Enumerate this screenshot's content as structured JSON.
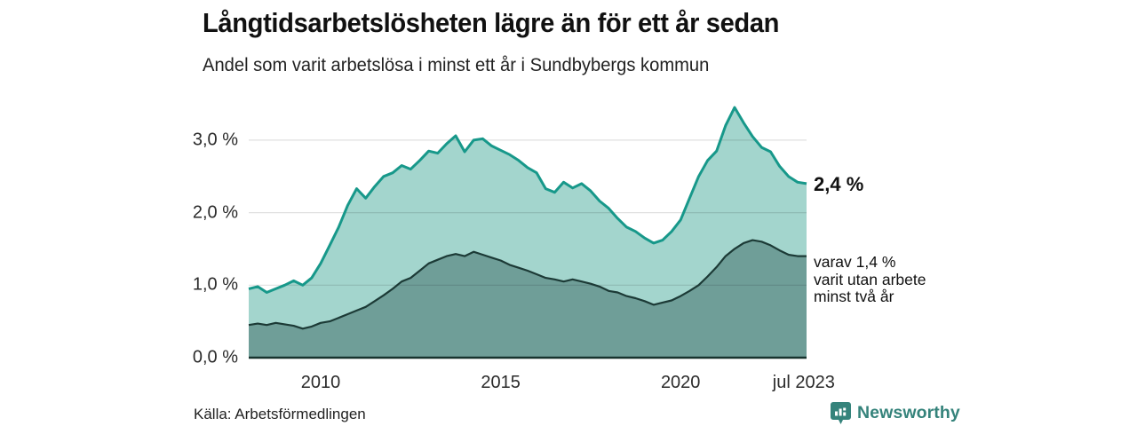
{
  "header": {
    "title": "Långtidsarbetslösheten lägre än för ett år sedan",
    "subtitle": "Andel som varit arbetslösa i minst ett år i Sundbybergs kommun"
  },
  "annotations": {
    "primary_value": "2,4 %",
    "secondary_lines": [
      "varav 1,4 %",
      "varit utan arbete",
      "minst två år"
    ]
  },
  "footer": {
    "source": "Källa: Arbetsförmedlingen",
    "brand": "Newsworthy",
    "brand_icon": "newsworthy-pin-barchart-icon",
    "brand_color": "#35837b"
  },
  "chart_data": {
    "type": "area",
    "title": "Långtidsarbetslösheten lägre än för ett år sedan",
    "subtitle": "Andel som varit arbetslösa i minst ett år i Sundbybergs kommun",
    "x_unit": "decimal year (quarterly readings of monthly series, jan 2008 – jul 2023)",
    "ylabel": "",
    "xlabel": "",
    "ylim": [
      0,
      3.5
    ],
    "grid": "horizontal",
    "legend": "none – direct labels at line ends",
    "gridline_color": "#d9d9d9",
    "baseline_color": "#17332e",
    "x": [
      2008.0,
      2008.25,
      2008.5,
      2008.75,
      2009.0,
      2009.25,
      2009.5,
      2009.75,
      2010.0,
      2010.25,
      2010.5,
      2010.75,
      2011.0,
      2011.25,
      2011.5,
      2011.75,
      2012.0,
      2012.25,
      2012.5,
      2012.75,
      2013.0,
      2013.25,
      2013.5,
      2013.75,
      2014.0,
      2014.25,
      2014.5,
      2014.75,
      2015.0,
      2015.25,
      2015.5,
      2015.75,
      2016.0,
      2016.25,
      2016.5,
      2016.75,
      2017.0,
      2017.25,
      2017.5,
      2017.75,
      2018.0,
      2018.25,
      2018.5,
      2018.75,
      2019.0,
      2019.25,
      2019.5,
      2019.75,
      2020.0,
      2020.25,
      2020.5,
      2020.75,
      2021.0,
      2021.25,
      2021.5,
      2021.75,
      2022.0,
      2022.25,
      2022.5,
      2022.75,
      2023.0,
      2023.25,
      2023.5
    ],
    "series": [
      {
        "name": "Andel arbetslösa i minst ett år",
        "end_label": "2,4 %",
        "end_value": 2.4,
        "line_color": "#17988a",
        "fill_color": "#a3d5cd",
        "values": [
          0.95,
          0.98,
          0.9,
          0.95,
          1.0,
          1.06,
          1.0,
          1.1,
          1.3,
          1.55,
          1.8,
          2.1,
          2.33,
          2.2,
          2.36,
          2.5,
          2.55,
          2.65,
          2.6,
          2.72,
          2.85,
          2.82,
          2.95,
          3.06,
          2.84,
          3.0,
          3.02,
          2.92,
          2.86,
          2.8,
          2.72,
          2.62,
          2.55,
          2.33,
          2.28,
          2.42,
          2.34,
          2.4,
          2.3,
          2.16,
          2.06,
          1.92,
          1.8,
          1.74,
          1.65,
          1.58,
          1.62,
          1.74,
          1.9,
          2.2,
          2.5,
          2.72,
          2.85,
          3.2,
          3.45,
          3.24,
          3.05,
          2.9,
          2.84,
          2.64,
          2.5,
          2.42,
          2.4
        ]
      },
      {
        "name": "varav utan arbete minst två år",
        "end_label": "varav 1,4 % varit utan arbete minst två år",
        "end_value": 1.4,
        "line_color": "#1c3a36",
        "fill_color": "#6f9e98",
        "values": [
          0.45,
          0.47,
          0.45,
          0.48,
          0.46,
          0.44,
          0.4,
          0.43,
          0.48,
          0.5,
          0.55,
          0.6,
          0.65,
          0.7,
          0.78,
          0.86,
          0.95,
          1.05,
          1.1,
          1.2,
          1.3,
          1.35,
          1.4,
          1.43,
          1.4,
          1.46,
          1.42,
          1.38,
          1.34,
          1.28,
          1.24,
          1.2,
          1.15,
          1.1,
          1.08,
          1.05,
          1.08,
          1.05,
          1.02,
          0.98,
          0.92,
          0.9,
          0.85,
          0.82,
          0.78,
          0.73,
          0.76,
          0.79,
          0.85,
          0.92,
          1.0,
          1.12,
          1.25,
          1.4,
          1.5,
          1.58,
          1.62,
          1.6,
          1.55,
          1.48,
          1.42,
          1.4,
          1.4
        ]
      }
    ],
    "yticks": [
      {
        "v": 0,
        "label": "0,0 %"
      },
      {
        "v": 1,
        "label": "1,0 %"
      },
      {
        "v": 2,
        "label": "2,0 %"
      },
      {
        "v": 3,
        "label": "3,0 %"
      }
    ],
    "xticks": [
      {
        "t": 2010,
        "label": "2010"
      },
      {
        "t": 2015,
        "label": "2015"
      },
      {
        "t": 2020,
        "label": "2020"
      },
      {
        "t": 2023.42,
        "label": "jul 2023"
      }
    ]
  }
}
